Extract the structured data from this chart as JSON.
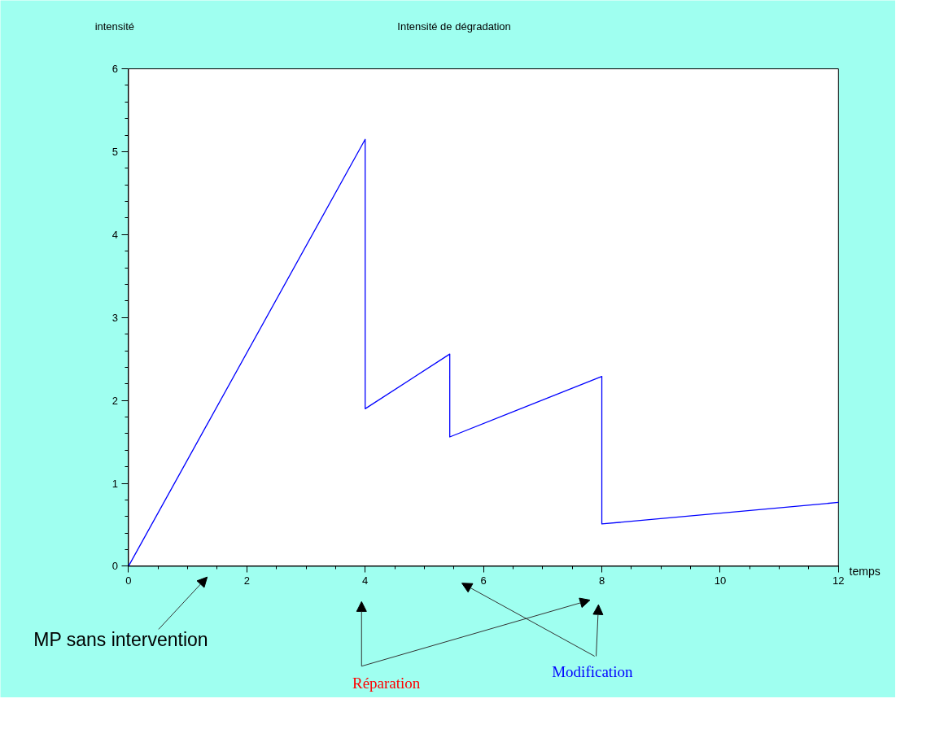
{
  "chart_data": {
    "type": "line",
    "title": "Intensité de dégradation",
    "xlabel": "temps",
    "ylabel": "intensité",
    "x": [
      0,
      4,
      4,
      5.43,
      5.43,
      8,
      8,
      12
    ],
    "series": [
      {
        "color": "#0000ff",
        "values": [
          0,
          5.15,
          1.9,
          2.56,
          1.56,
          2.29,
          0.51,
          0.77
        ]
      }
    ],
    "xlim": [
      0,
      12
    ],
    "ylim": [
      0,
      6
    ],
    "xticks": [
      0,
      2,
      4,
      6,
      8,
      10,
      12
    ],
    "yticks": [
      0,
      1,
      2,
      3,
      4,
      5,
      6
    ],
    "grid": false,
    "marker": "none",
    "line_style": "solid",
    "annotations": [
      "MP sans intervention",
      "Réparation",
      "Modification"
    ]
  }
}
